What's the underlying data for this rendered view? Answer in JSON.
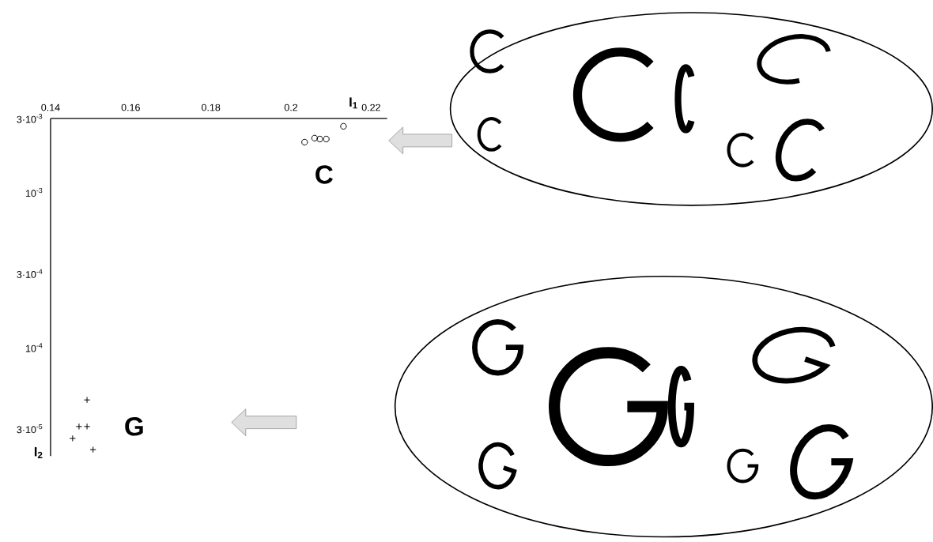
{
  "chart_data": {
    "type": "scatter",
    "xlabel": "I$_{1}$",
    "ylabel": "I$_{2}$",
    "log": "y",
    "xlim": [
      0.14,
      0.224
    ],
    "ylim": [
      2e-05,
      0.003
    ],
    "xticks": [
      0.14,
      0.16,
      0.18,
      0.2,
      0.22
    ],
    "yticks": [
      {
        "value": 0.003,
        "label": "3·10$^{-3}$"
      },
      {
        "value": 0.001,
        "label": "10$^{-3}$"
      },
      {
        "value": 0.0003,
        "label": "3·10$^{-4}$"
      },
      {
        "value": 0.0001,
        "label": "10$^{-4}$"
      },
      {
        "value": 3e-05,
        "label": "3·10$^{-5}$"
      }
    ],
    "series": [
      {
        "name": "C",
        "color": "#000000",
        "marker": "circle",
        "x": [
          0.2034,
          0.2059,
          0.2072,
          0.2088,
          0.2131
        ],
        "values": [
          0.00211,
          0.00224,
          0.00221,
          0.00221,
          0.00267
        ]
      },
      {
        "name": "G",
        "color": "#000000",
        "marker": "cross",
        "x": [
          0.1491,
          0.1471,
          0.1491,
          0.1455,
          0.1506
        ],
        "values": [
          4.6e-05,
          3.1e-05,
          3.1e-05,
          2.6e-05,
          2.2e-05
        ]
      }
    ]
  }
}
